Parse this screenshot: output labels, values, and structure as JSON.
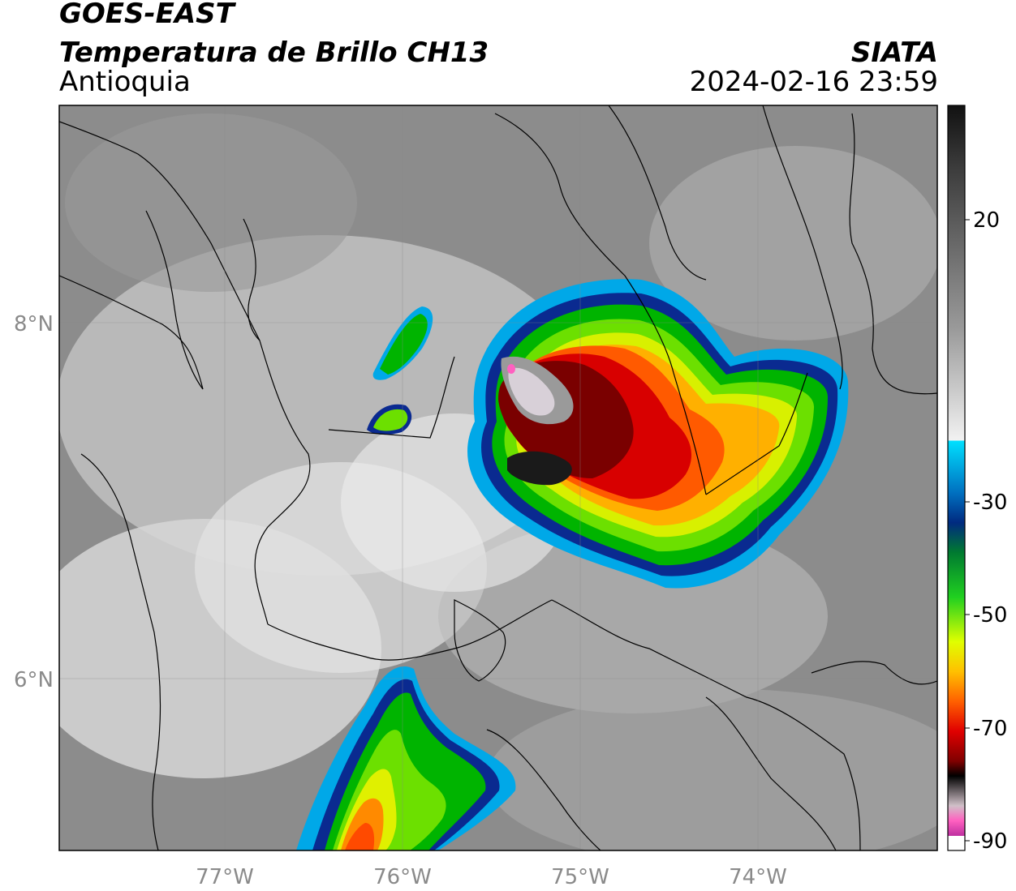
{
  "header": {
    "line1": "GOES-EAST",
    "line2": "Temperatura de Brillo CH13",
    "line3": "Antioquia",
    "org": "SIATA",
    "datetime": "2024-02-16 23:59"
  },
  "map": {
    "lon_ticks": [
      "77°W",
      "76°W",
      "75°W",
      "74°W"
    ],
    "lat_ticks": [
      "8°N",
      "6°N"
    ]
  },
  "colorbar": {
    "tick_labels": [
      "20",
      "-30",
      "-50",
      "-70",
      "-90"
    ]
  }
}
